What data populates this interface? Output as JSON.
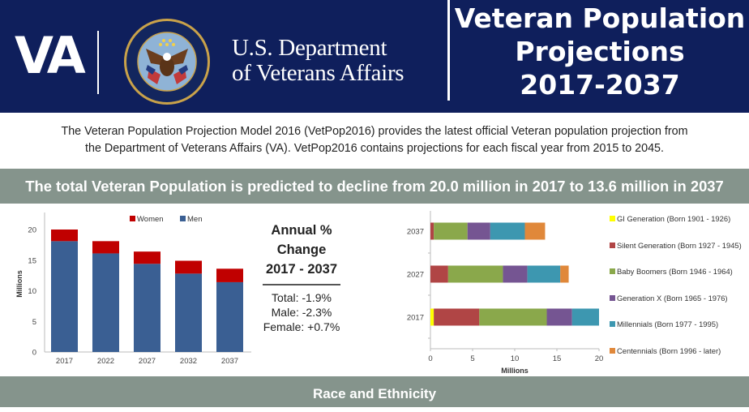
{
  "header": {
    "logo_text": "VA",
    "department_line1": "U.S. Department",
    "department_line2": "of Veterans Affairs",
    "seal_text_top": "DEPARTMENT OF VETERANS AFFAIRS",
    "seal_text_bottom": "UNITED STATES OF AMERICA",
    "title_line1": "Veteran Population",
    "title_line2": "Projections",
    "title_line3": "2017-2037"
  },
  "intro": {
    "line1": "The Veteran Population Projection Model 2016 (VetPop2016) provides the latest official Veteran population projection from",
    "line2": "the Department of Veterans Affairs (VA).  VetPop2016 contains projections for each fiscal year from 2015 to 2045."
  },
  "banner_text": "The total Veteran Population is predicted to decline from 20.0 million in 2017 to 13.6 million in 2037",
  "annual_change": {
    "heading_line1": "Annual %",
    "heading_line2": "Change",
    "heading_line3": "2017 - 2037",
    "total": "Total: -1.9%",
    "male": "Male: -2.3%",
    "female": "Female: +0.7%"
  },
  "section2_banner": "Race and Ethnicity",
  "colors": {
    "header_bg": "#0f1f5c",
    "banner_bg": "#85948c",
    "men": "#3a5f93",
    "women": "#c00000"
  },
  "chart_data": [
    {
      "type": "bar",
      "stacked": true,
      "orientation": "vertical",
      "title": "",
      "xlabel": "",
      "ylabel": "Millions",
      "categories": [
        "2017",
        "2022",
        "2027",
        "2032",
        "2037"
      ],
      "series": [
        {
          "name": "Men",
          "color": "#3a5f93",
          "values": [
            18.1,
            16.1,
            14.4,
            12.8,
            11.4
          ]
        },
        {
          "name": "Women",
          "color": "#c00000",
          "values": [
            1.9,
            2.0,
            2.0,
            2.1,
            2.2
          ]
        }
      ],
      "legend_order": [
        "Women",
        "Men"
      ],
      "legend": "top",
      "ylim": [
        0,
        22
      ],
      "yticks": [
        0,
        5,
        10,
        15,
        20
      ],
      "grid": false
    },
    {
      "type": "bar",
      "stacked": true,
      "orientation": "horizontal",
      "title": "",
      "xlabel": "Millions",
      "ylabel": "",
      "categories": [
        "2017",
        "2027",
        "2037"
      ],
      "series": [
        {
          "name": "GI Generation (Born 1901 - 1926)",
          "color": "#ffff00",
          "values": [
            0.4,
            0.0,
            0.0
          ]
        },
        {
          "name": "Silent Generation (Born 1927 - 1945)",
          "color": "#b04545",
          "values": [
            5.4,
            2.1,
            0.4
          ]
        },
        {
          "name": "Baby Boomers (Born 1946 - 1964)",
          "color": "#8aa84b",
          "values": [
            8.0,
            6.5,
            4.0
          ]
        },
        {
          "name": "Generation X (Born 1965 - 1976)",
          "color": "#755592",
          "values": [
            3.0,
            2.9,
            2.7
          ]
        },
        {
          "name": "Millennials (Born 1977 - 1995)",
          "color": "#3d97b0",
          "values": [
            3.2,
            3.9,
            4.1
          ]
        },
        {
          "name": "Centennials (Born 1996 - later)",
          "color": "#e0883a",
          "values": [
            0.0,
            1.0,
            2.4
          ]
        }
      ],
      "legend": "right",
      "xlim": [
        0,
        20
      ],
      "xticks": [
        0,
        5,
        10,
        15,
        20
      ],
      "grid": false
    }
  ]
}
